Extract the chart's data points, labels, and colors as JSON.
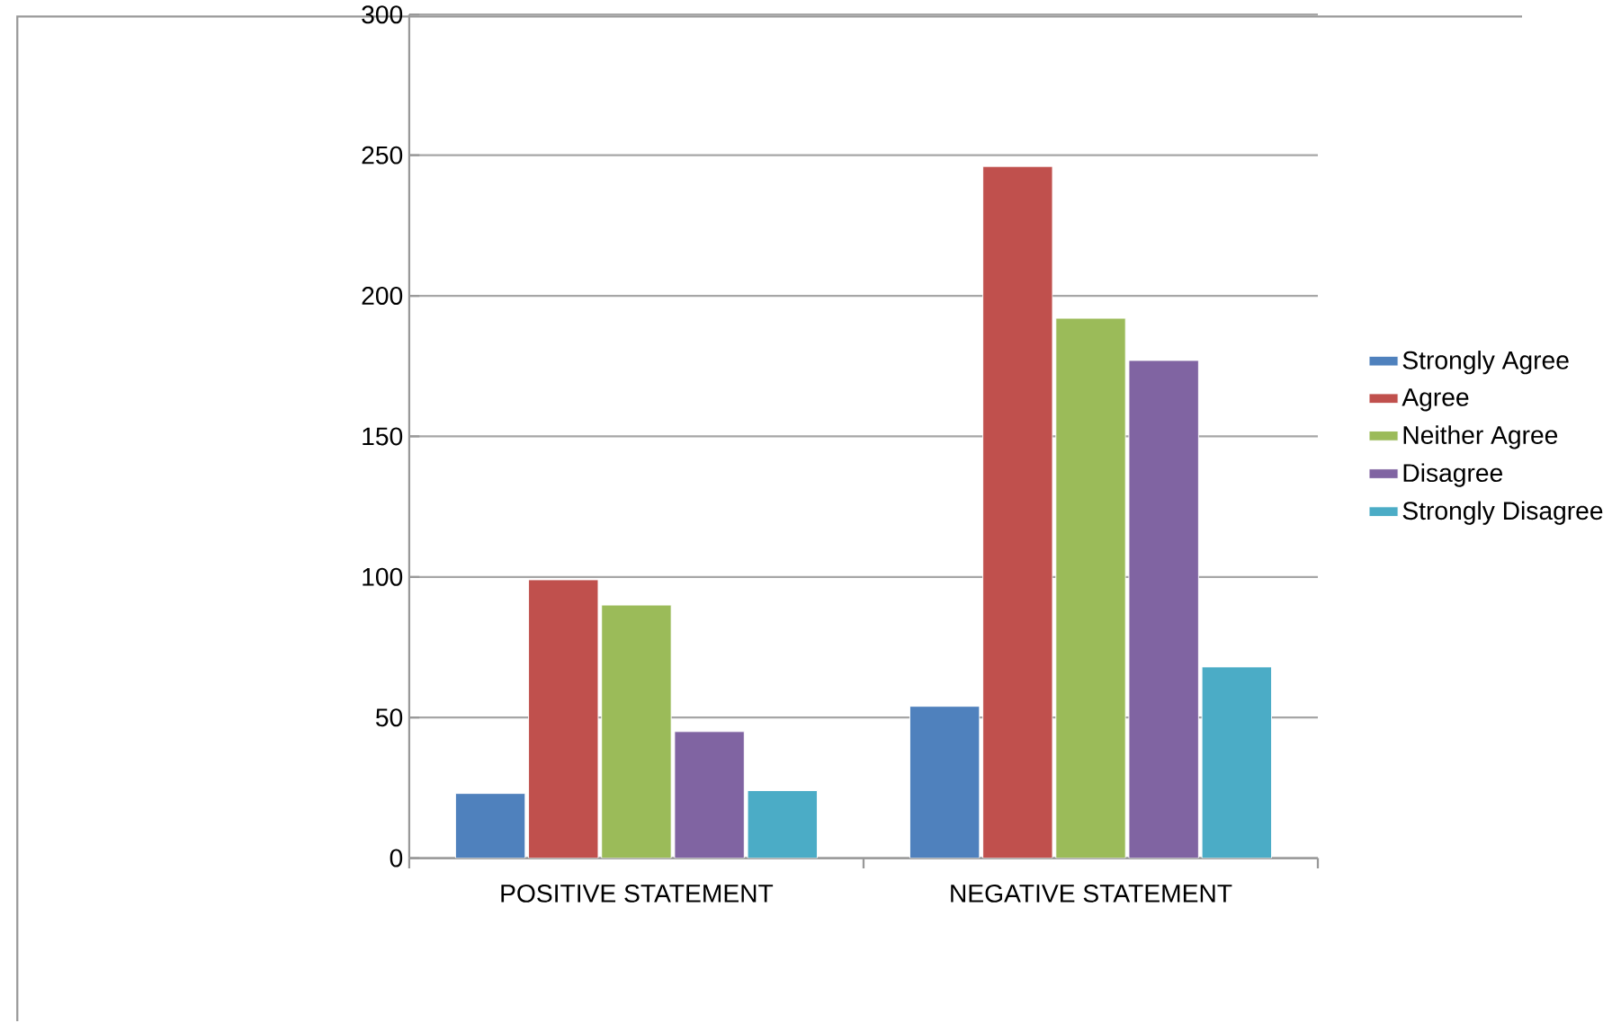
{
  "chart_data": {
    "type": "bar",
    "categories": [
      "POSITIVE STATEMENT",
      "NEGATIVE STATEMENT"
    ],
    "series": [
      {
        "name": "Strongly Agree",
        "color": "#4f81bd",
        "values": [
          23,
          54
        ]
      },
      {
        "name": "Agree",
        "color": "#c0504d",
        "values": [
          99,
          246
        ]
      },
      {
        "name": "Neither Agree",
        "color": "#9bbb59",
        "values": [
          90,
          192
        ]
      },
      {
        "name": "Disagree",
        "color": "#8064a2",
        "values": [
          45,
          177
        ]
      },
      {
        "name": "Strongly Disagree",
        "color": "#4bacc6",
        "values": [
          24,
          68
        ]
      }
    ],
    "ylim": [
      0,
      300
    ],
    "yticks": [
      0,
      50,
      100,
      150,
      200,
      250,
      300
    ],
    "grid": "y",
    "legend": "right"
  }
}
